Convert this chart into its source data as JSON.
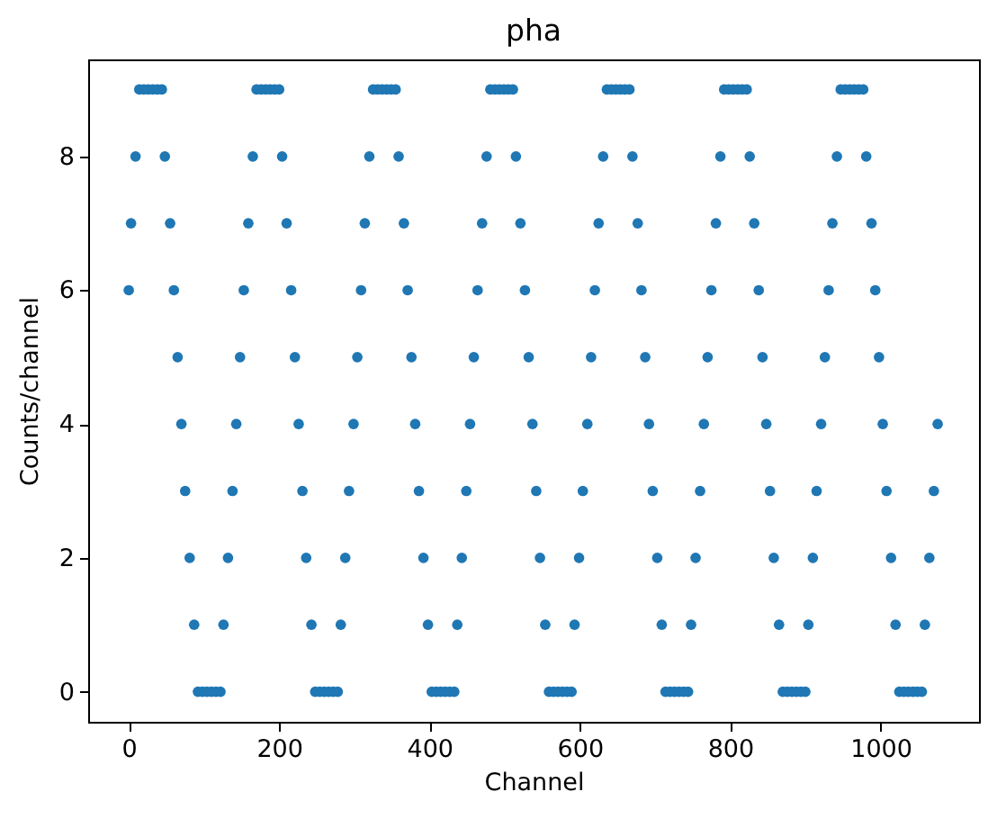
{
  "chart_data": {
    "type": "scatter",
    "title": "pha",
    "xlabel": "Channel",
    "ylabel": "Counts/channel",
    "x": [
      0,
      3,
      9,
      14,
      20,
      26,
      32,
      38,
      44,
      48,
      55,
      60,
      65,
      70,
      75,
      81,
      87,
      92,
      98,
      104,
      110,
      116,
      122,
      126,
      132,
      138,
      143,
      148,
      153,
      159,
      165,
      170,
      176,
      182,
      188,
      194,
      200,
      204,
      210,
      216,
      221,
      226,
      231,
      236,
      243,
      248,
      254,
      260,
      266,
      272,
      278,
      282,
      288,
      293,
      299,
      304,
      309,
      314,
      320,
      325,
      331,
      337,
      343,
      349,
      355,
      359,
      366,
      371,
      376,
      381,
      386,
      392,
      398,
      403,
      409,
      415,
      421,
      427,
      433,
      437,
      443,
      449,
      454,
      459,
      464,
      470,
      476,
      481,
      487,
      493,
      499,
      505,
      511,
      515,
      521,
      527,
      532,
      537,
      542,
      547,
      554,
      559,
      565,
      571,
      577,
      583,
      589,
      593,
      599,
      604,
      610,
      615,
      620,
      625,
      631,
      636,
      642,
      648,
      654,
      660,
      666,
      670,
      677,
      682,
      687,
      692,
      697,
      703,
      709,
      714,
      720,
      726,
      732,
      738,
      744,
      748,
      754,
      760,
      765,
      770,
      775,
      781,
      787,
      792,
      798,
      804,
      810,
      816,
      822,
      826,
      832,
      838,
      843,
      848,
      853,
      858,
      865,
      870,
      876,
      882,
      888,
      894,
      900,
      904,
      910,
      915,
      921,
      926,
      931,
      936,
      942,
      947,
      953,
      959,
      965,
      971,
      977,
      981,
      988,
      993,
      998,
      1003,
      1008,
      1014,
      1020,
      1025,
      1031,
      1037,
      1043,
      1049,
      1055,
      1059,
      1065,
      1071,
      1076
    ],
    "values": [
      6,
      7,
      8,
      9,
      9,
      9,
      9,
      9,
      9,
      8,
      7,
      6,
      5,
      4,
      3,
      2,
      1,
      0,
      0,
      0,
      0,
      0,
      0,
      1,
      2,
      3,
      4,
      5,
      6,
      7,
      8,
      9,
      9,
      9,
      9,
      9,
      9,
      8,
      7,
      6,
      5,
      4,
      3,
      2,
      1,
      0,
      0,
      0,
      0,
      0,
      0,
      1,
      2,
      3,
      4,
      5,
      6,
      7,
      8,
      9,
      9,
      9,
      9,
      9,
      9,
      8,
      7,
      6,
      5,
      4,
      3,
      2,
      1,
      0,
      0,
      0,
      0,
      0,
      0,
      1,
      2,
      3,
      4,
      5,
      6,
      7,
      8,
      9,
      9,
      9,
      9,
      9,
      9,
      8,
      7,
      6,
      5,
      4,
      3,
      2,
      1,
      0,
      0,
      0,
      0,
      0,
      0,
      1,
      2,
      3,
      4,
      5,
      6,
      7,
      8,
      9,
      9,
      9,
      9,
      9,
      9,
      8,
      7,
      6,
      5,
      4,
      3,
      2,
      1,
      0,
      0,
      0,
      0,
      0,
      0,
      1,
      2,
      3,
      4,
      5,
      6,
      7,
      8,
      9,
      9,
      9,
      9,
      9,
      9,
      8,
      7,
      6,
      5,
      4,
      3,
      2,
      1,
      0,
      0,
      0,
      0,
      0,
      0,
      1,
      2,
      3,
      4,
      5,
      6,
      7,
      8,
      9,
      9,
      9,
      9,
      9,
      9,
      8,
      7,
      6,
      5,
      4,
      3,
      2,
      1,
      0,
      0,
      0,
      0,
      0,
      0,
      1,
      2,
      3,
      4
    ],
    "color": "#1f77b4",
    "marker": "circle",
    "xlim": [
      -54,
      1131
    ],
    "ylim": [
      -0.45,
      9.45
    ],
    "xticks": [
      0,
      200,
      400,
      600,
      800,
      1000
    ],
    "yticks": [
      0,
      2,
      4,
      6,
      8
    ]
  }
}
